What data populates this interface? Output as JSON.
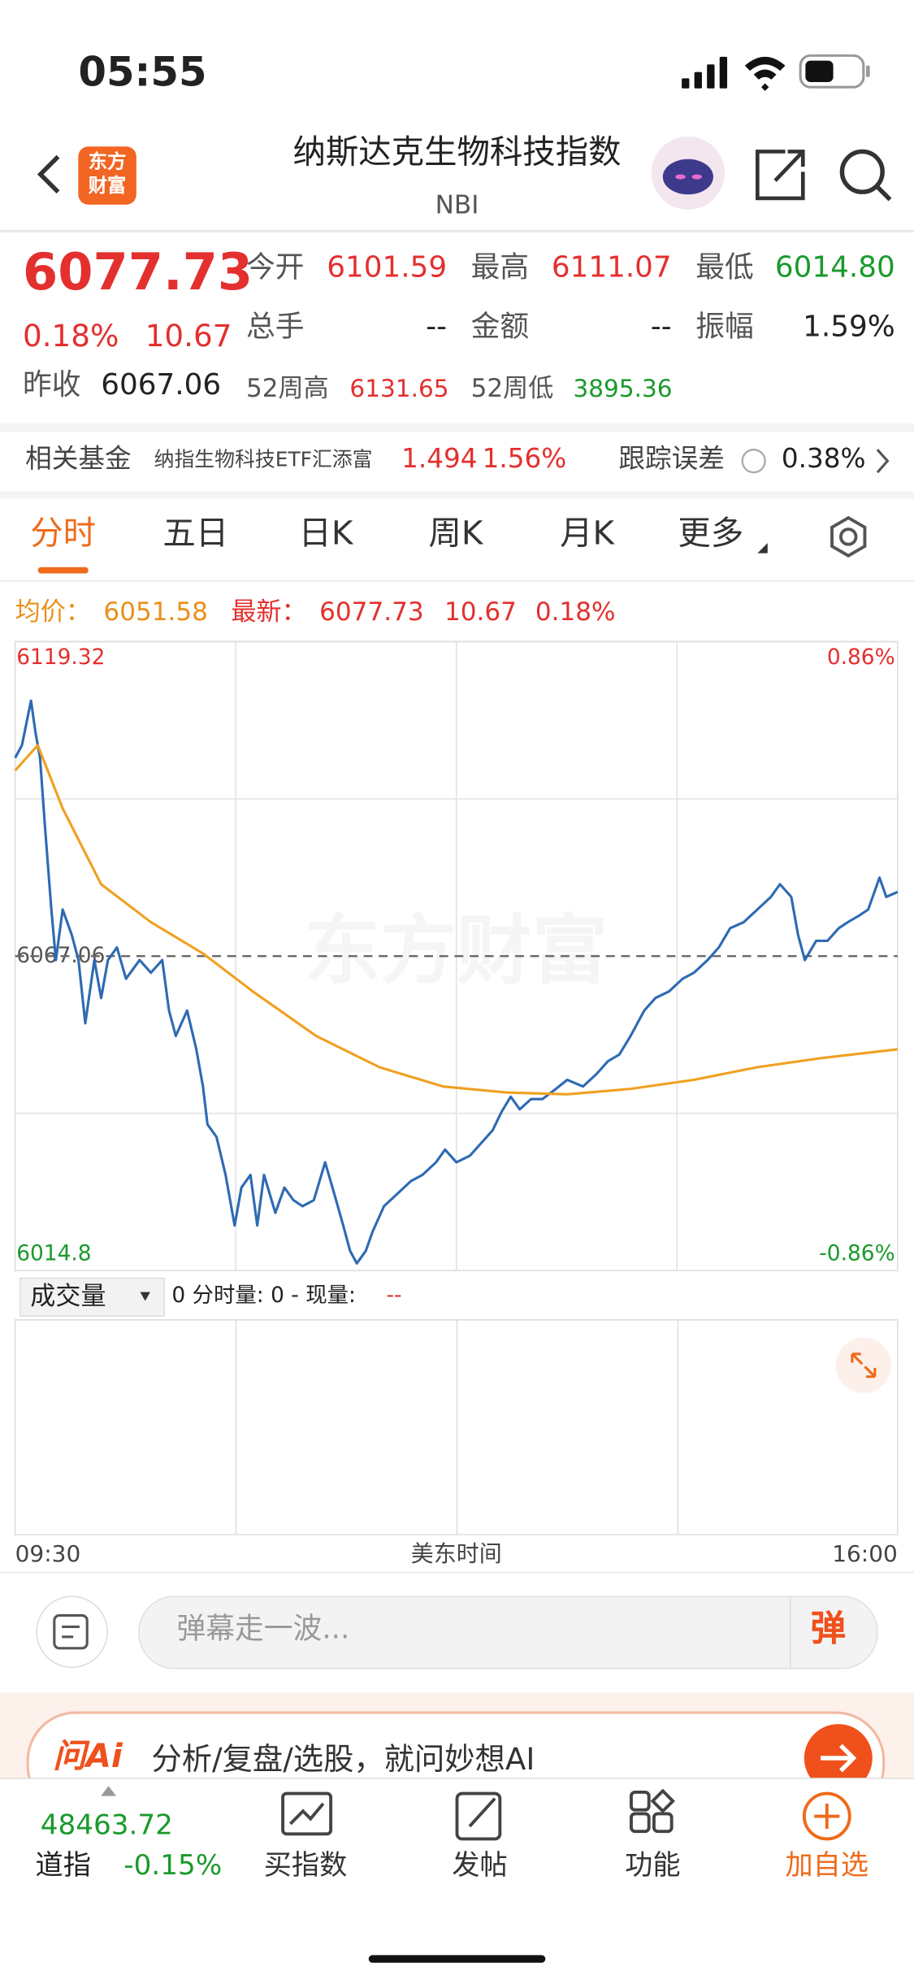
{
  "status": {
    "time": "05:55"
  },
  "header": {
    "logo": [
      "东方",
      "财富"
    ],
    "title": "纳斯达克生物科技指数",
    "code": "NBI"
  },
  "quote": {
    "price": "6077.73",
    "change_pct": "0.18%",
    "change": "10.67",
    "prev_close_label": "昨收",
    "prev_close": "6067.06",
    "fields": [
      {
        "label": "今开",
        "value": "6101.59"
      },
      {
        "label": "最高",
        "value": "6111.07"
      },
      {
        "label": "最低",
        "value": "6014.80"
      },
      {
        "label": "总手",
        "value": "--"
      },
      {
        "label": "金额",
        "value": "--"
      },
      {
        "label": "振幅",
        "value": "1.59%"
      },
      {
        "label": "52周高",
        "value": "6131.65"
      },
      {
        "label": "52周低",
        "value": "3895.36"
      }
    ]
  },
  "fund": {
    "label": "相关基金",
    "name": "纳指生物科技ETF汇添富",
    "price": "1.494",
    "pct": "1.56%",
    "tracking_label": "跟踪误差",
    "tracking": "0.38%"
  },
  "tabs": [
    "分时",
    "五日",
    "日K",
    "周K",
    "月K",
    "更多"
  ],
  "legend": {
    "avg_label": "均价：",
    "avg": "6051.58",
    "latest_label": "最新：",
    "latest": "6077.73",
    "change": "10.67",
    "pct": "0.18%"
  },
  "chart_data": {
    "type": "line",
    "watermark": "东方财富",
    "xlabel": "美东时间",
    "xlim": [
      0,
      390
    ],
    "xticks": [
      {
        "value": 0,
        "label": "09:30"
      },
      {
        "value": 390,
        "label": "16:00"
      }
    ],
    "ylim": [
      6014.8,
      6119.32
    ],
    "yticks": [
      6119.32,
      6067.06,
      6014.8
    ],
    "y2lim": [
      -0.86,
      0.86
    ],
    "y2ticks": [
      {
        "value": 0.86,
        "label": "0.86%"
      },
      {
        "value": -0.86,
        "label": "-0.86%"
      }
    ],
    "reference": 6067.06,
    "grid": true,
    "series": [
      {
        "name": "最新",
        "color": "#2e6ab3",
        "x": [
          0,
          3,
          7,
          9,
          11,
          13,
          16,
          18,
          21,
          25,
          28,
          31,
          35,
          38,
          41,
          45,
          49,
          55,
          60,
          65,
          68,
          71,
          76,
          80,
          83,
          85,
          89,
          93,
          97,
          100,
          104,
          107,
          110,
          115,
          119,
          123,
          127,
          132,
          137,
          141,
          145,
          148,
          151,
          155,
          158,
          163,
          169,
          175,
          180,
          186,
          190,
          195,
          201,
          206,
          211,
          215,
          219,
          223,
          228,
          233,
          239,
          244,
          251,
          257,
          262,
          267,
          272,
          278,
          283,
          289,
          295,
          300,
          306,
          311,
          316,
          322,
          328,
          334,
          338,
          343,
          346,
          349,
          354,
          359,
          364,
          368,
          373,
          377,
          382,
          385,
          390
        ],
        "values": [
          6100.0,
          6102.1,
          6109.5,
          6104.2,
          6100.0,
          6089.5,
          6074.8,
          6066.4,
          6074.8,
          6070.6,
          6066.4,
          6055.9,
          6066.4,
          6060.1,
          6066.4,
          6068.5,
          6063.3,
          6066.4,
          6064.3,
          6066.4,
          6058.0,
          6053.8,
          6058.0,
          6051.7,
          6045.4,
          6039.1,
          6037.0,
          6030.7,
          6022.3,
          6028.6,
          6030.7,
          6022.3,
          6030.7,
          6024.4,
          6028.6,
          6026.5,
          6025.5,
          6026.5,
          6032.8,
          6027.6,
          6022.3,
          6018.1,
          6016.0,
          6018.1,
          6021.3,
          6025.5,
          6027.6,
          6029.7,
          6030.7,
          6032.8,
          6034.9,
          6032.8,
          6033.9,
          6036.0,
          6038.1,
          6041.2,
          6043.7,
          6041.6,
          6043.3,
          6043.3,
          6045.0,
          6046.5,
          6045.4,
          6047.5,
          6049.6,
          6050.7,
          6053.8,
          6058.0,
          6060.1,
          6061.2,
          6063.3,
          6064.3,
          6066.4,
          6068.5,
          6071.7,
          6072.7,
          6074.8,
          6076.9,
          6079.0,
          6076.9,
          6070.6,
          6066.4,
          6069.6,
          6069.6,
          6071.7,
          6072.7,
          6073.8,
          6074.8,
          6080.1,
          6076.9,
          6077.73
        ]
      },
      {
        "name": "均价",
        "color": "#f0a020",
        "x": [
          0,
          10,
          21,
          38,
          60,
          83,
          105,
          133,
          161,
          189,
          217,
          244,
          272,
          300,
          328,
          356,
          390
        ],
        "values": [
          6097.9,
          6102.1,
          6091.6,
          6079.0,
          6072.7,
          6067.5,
          6061.2,
          6053.8,
          6048.6,
          6045.4,
          6044.4,
          6044.1,
          6045.0,
          6046.5,
          6048.6,
          6050.1,
          6051.58
        ]
      }
    ]
  },
  "volume": {
    "selector": "成交量",
    "info": "0 分时量: 0 - 现量:",
    "current": "--"
  },
  "comment": {
    "placeholder": "弹幕走一波...",
    "button": "弹"
  },
  "ai": {
    "logo": "问Ai",
    "text": "分析/复盘/选股，就问妙想AI"
  },
  "bottom": {
    "index_value": "48463.72",
    "index_name": "道指",
    "index_pct": "-0.15%",
    "items": [
      "买指数",
      "发帖",
      "功能",
      "加自选"
    ]
  }
}
